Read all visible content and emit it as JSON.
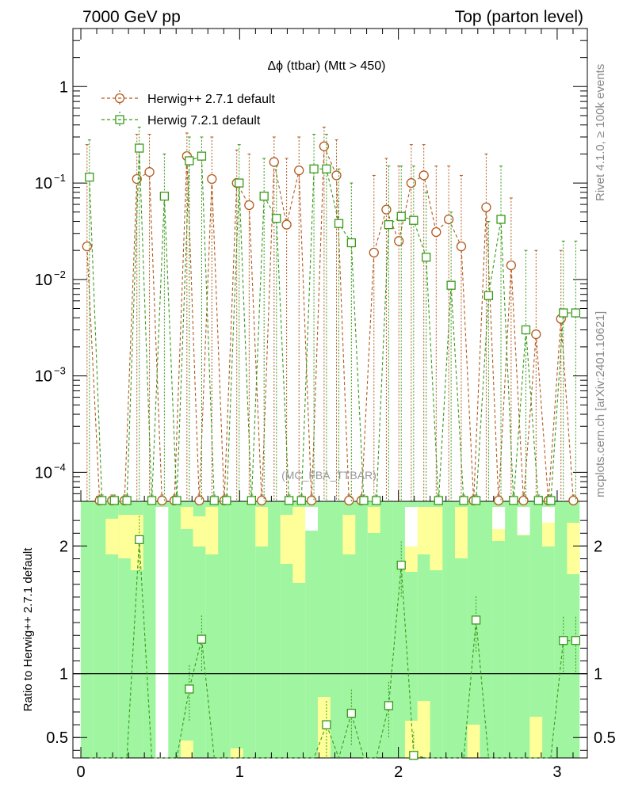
{
  "chart_data": {
    "type": "line",
    "header_left": "7000 GeV pp",
    "header_right": "Top (parton level)",
    "title": "Δϕ (ttbar) (Mtt > 450)",
    "watermark": "(MC_FBA_TTBAR)",
    "side_label_top": "Rivet 4.1.0, ≥ 100k events",
    "side_label_bottom": "mcplots.cern.ch [arXiv:2401.10621]",
    "ratio_ylabel": "Ratio to Herwig++ 2.7.1 default",
    "xlim": [
      -0.05,
      3.19
    ],
    "ylim_main": [
      5e-05,
      4
    ],
    "ylim_ratio": [
      0.34,
      2.35
    ],
    "yticks_main": [
      {
        "value": 1,
        "label": "1"
      },
      {
        "value": 0.1,
        "label": "10",
        "exp": "−1"
      },
      {
        "value": 0.01,
        "label": "10",
        "exp": "−2"
      },
      {
        "value": 0.001,
        "label": "10",
        "exp": "−3"
      },
      {
        "value": 0.0001,
        "label": "10",
        "exp": "−4"
      }
    ],
    "xticks": [
      {
        "value": 0,
        "label": "0"
      },
      {
        "value": 1,
        "label": "1"
      },
      {
        "value": 2,
        "label": "2"
      },
      {
        "value": 3,
        "label": "3"
      }
    ],
    "yticks_ratio": [
      {
        "value": 0.5,
        "label": "0.5"
      },
      {
        "value": 1,
        "label": "1"
      },
      {
        "value": 2,
        "label": "2"
      }
    ],
    "x": [
      0.039,
      0.118,
      0.196,
      0.275,
      0.353,
      0.432,
      0.511,
      0.589,
      0.668,
      0.746,
      0.825,
      0.903,
      0.982,
      1.06,
      1.139,
      1.217,
      1.296,
      1.374,
      1.453,
      1.532,
      1.61,
      1.689,
      1.767,
      1.846,
      1.924,
      2.003,
      2.081,
      2.16,
      2.238,
      2.317,
      2.396,
      2.474,
      2.553,
      2.631,
      2.71,
      2.788,
      2.867,
      2.945,
      3.024,
      3.102
    ],
    "series": [
      {
        "name": "Herwig++ 2.7.1 default",
        "color": "#b35a1f",
        "marker": "circle",
        "values": [
          0.022,
          0,
          0,
          0,
          0.11,
          0.13,
          0,
          0,
          0.19,
          0,
          0.11,
          0,
          0.1,
          0.059,
          0,
          0.165,
          0.037,
          0.135,
          0,
          0.24,
          0.12,
          0,
          0,
          0.019,
          0.053,
          0.025,
          0.1,
          0.12,
          0.031,
          0.042,
          0.022,
          0,
          0.056,
          0,
          0.014,
          0,
          0.0027,
          0,
          0.0039,
          0
        ],
        "err_up": [
          0.25,
          0,
          0,
          0,
          0.32,
          0.32,
          0,
          0,
          0.33,
          0,
          0.3,
          0,
          0.22,
          0.2,
          0,
          0.3,
          0.18,
          0.3,
          0,
          0.38,
          0.28,
          0,
          0,
          0.12,
          0.18,
          0.15,
          0.25,
          0.25,
          0.15,
          0.15,
          0.12,
          0,
          0.2,
          0,
          0.07,
          0,
          0.02,
          0,
          0.02,
          0
        ]
      },
      {
        "name": "Herwig 7.2.1 default",
        "color": "#3a9a1a",
        "marker": "square",
        "values": [
          0.115,
          0,
          0,
          0,
          0.23,
          0,
          0.073,
          0,
          0.17,
          0.19,
          0,
          0,
          0.1,
          0,
          0.073,
          0.043,
          0,
          0,
          0.14,
          0.14,
          0.038,
          0.024,
          0,
          0,
          0.037,
          0.045,
          0.041,
          0.017,
          0,
          0.0087,
          0,
          0,
          0.0068,
          0.042,
          0,
          0.003,
          0,
          0,
          0.0045,
          0.0045
        ],
        "err_up": [
          0.28,
          0,
          0,
          0,
          0.38,
          0,
          0.2,
          0,
          0.3,
          0.3,
          0,
          0,
          0.25,
          0,
          0.18,
          0.15,
          0,
          0,
          0.32,
          0.32,
          0.14,
          0.1,
          0,
          0,
          0.15,
          0.15,
          0.15,
          0.08,
          0,
          0.05,
          0,
          0,
          0.04,
          0.15,
          0,
          0.02,
          0,
          0,
          0.025,
          0.025
        ],
        "ratio": [
          null,
          null,
          null,
          null,
          2.05,
          null,
          null,
          null,
          0.88,
          1.27,
          null,
          null,
          null,
          null,
          null,
          null,
          null,
          null,
          null,
          0.6,
          null,
          0.69,
          null,
          null,
          0.75,
          1.85,
          0.36,
          null,
          null,
          null,
          null,
          1.42,
          null,
          null,
          null,
          null,
          null,
          null,
          1.26,
          1.26
        ]
      }
    ],
    "band_green": [
      0.02,
      0.02,
      0.02,
      0.02,
      0.02,
      0.02,
      0.02,
      0.02,
      0.02,
      0.02,
      0.02,
      0.02,
      0.02,
      0.02,
      0.02,
      0.02,
      0.02,
      0.02,
      0.02,
      0.02,
      0.02,
      0.02,
      0.02,
      0.02,
      0.02,
      0.02,
      0.02,
      0.02,
      0.02,
      0.02,
      0.02,
      0.02,
      0.02,
      0.02,
      0.02,
      0.02,
      0.02,
      0.02,
      0.02,
      0.02
    ],
    "band_yellow": [
      0.02,
      0.02,
      0.02,
      0.02,
      0.02,
      0.02,
      0.02,
      0.02,
      0.02,
      0.02,
      0.02,
      0.02,
      0.02,
      0.02,
      0.02,
      0.02,
      0.02,
      0.02,
      0.02,
      0.02,
      0.02,
      0.02,
      0.02,
      0.02,
      0.02,
      0.02,
      0.02,
      0.02,
      0.02,
      0.02,
      0.02,
      0.02,
      0.02,
      0.02,
      0.02,
      0.02,
      0.02,
      0.02,
      0.02,
      0.02
    ]
  }
}
